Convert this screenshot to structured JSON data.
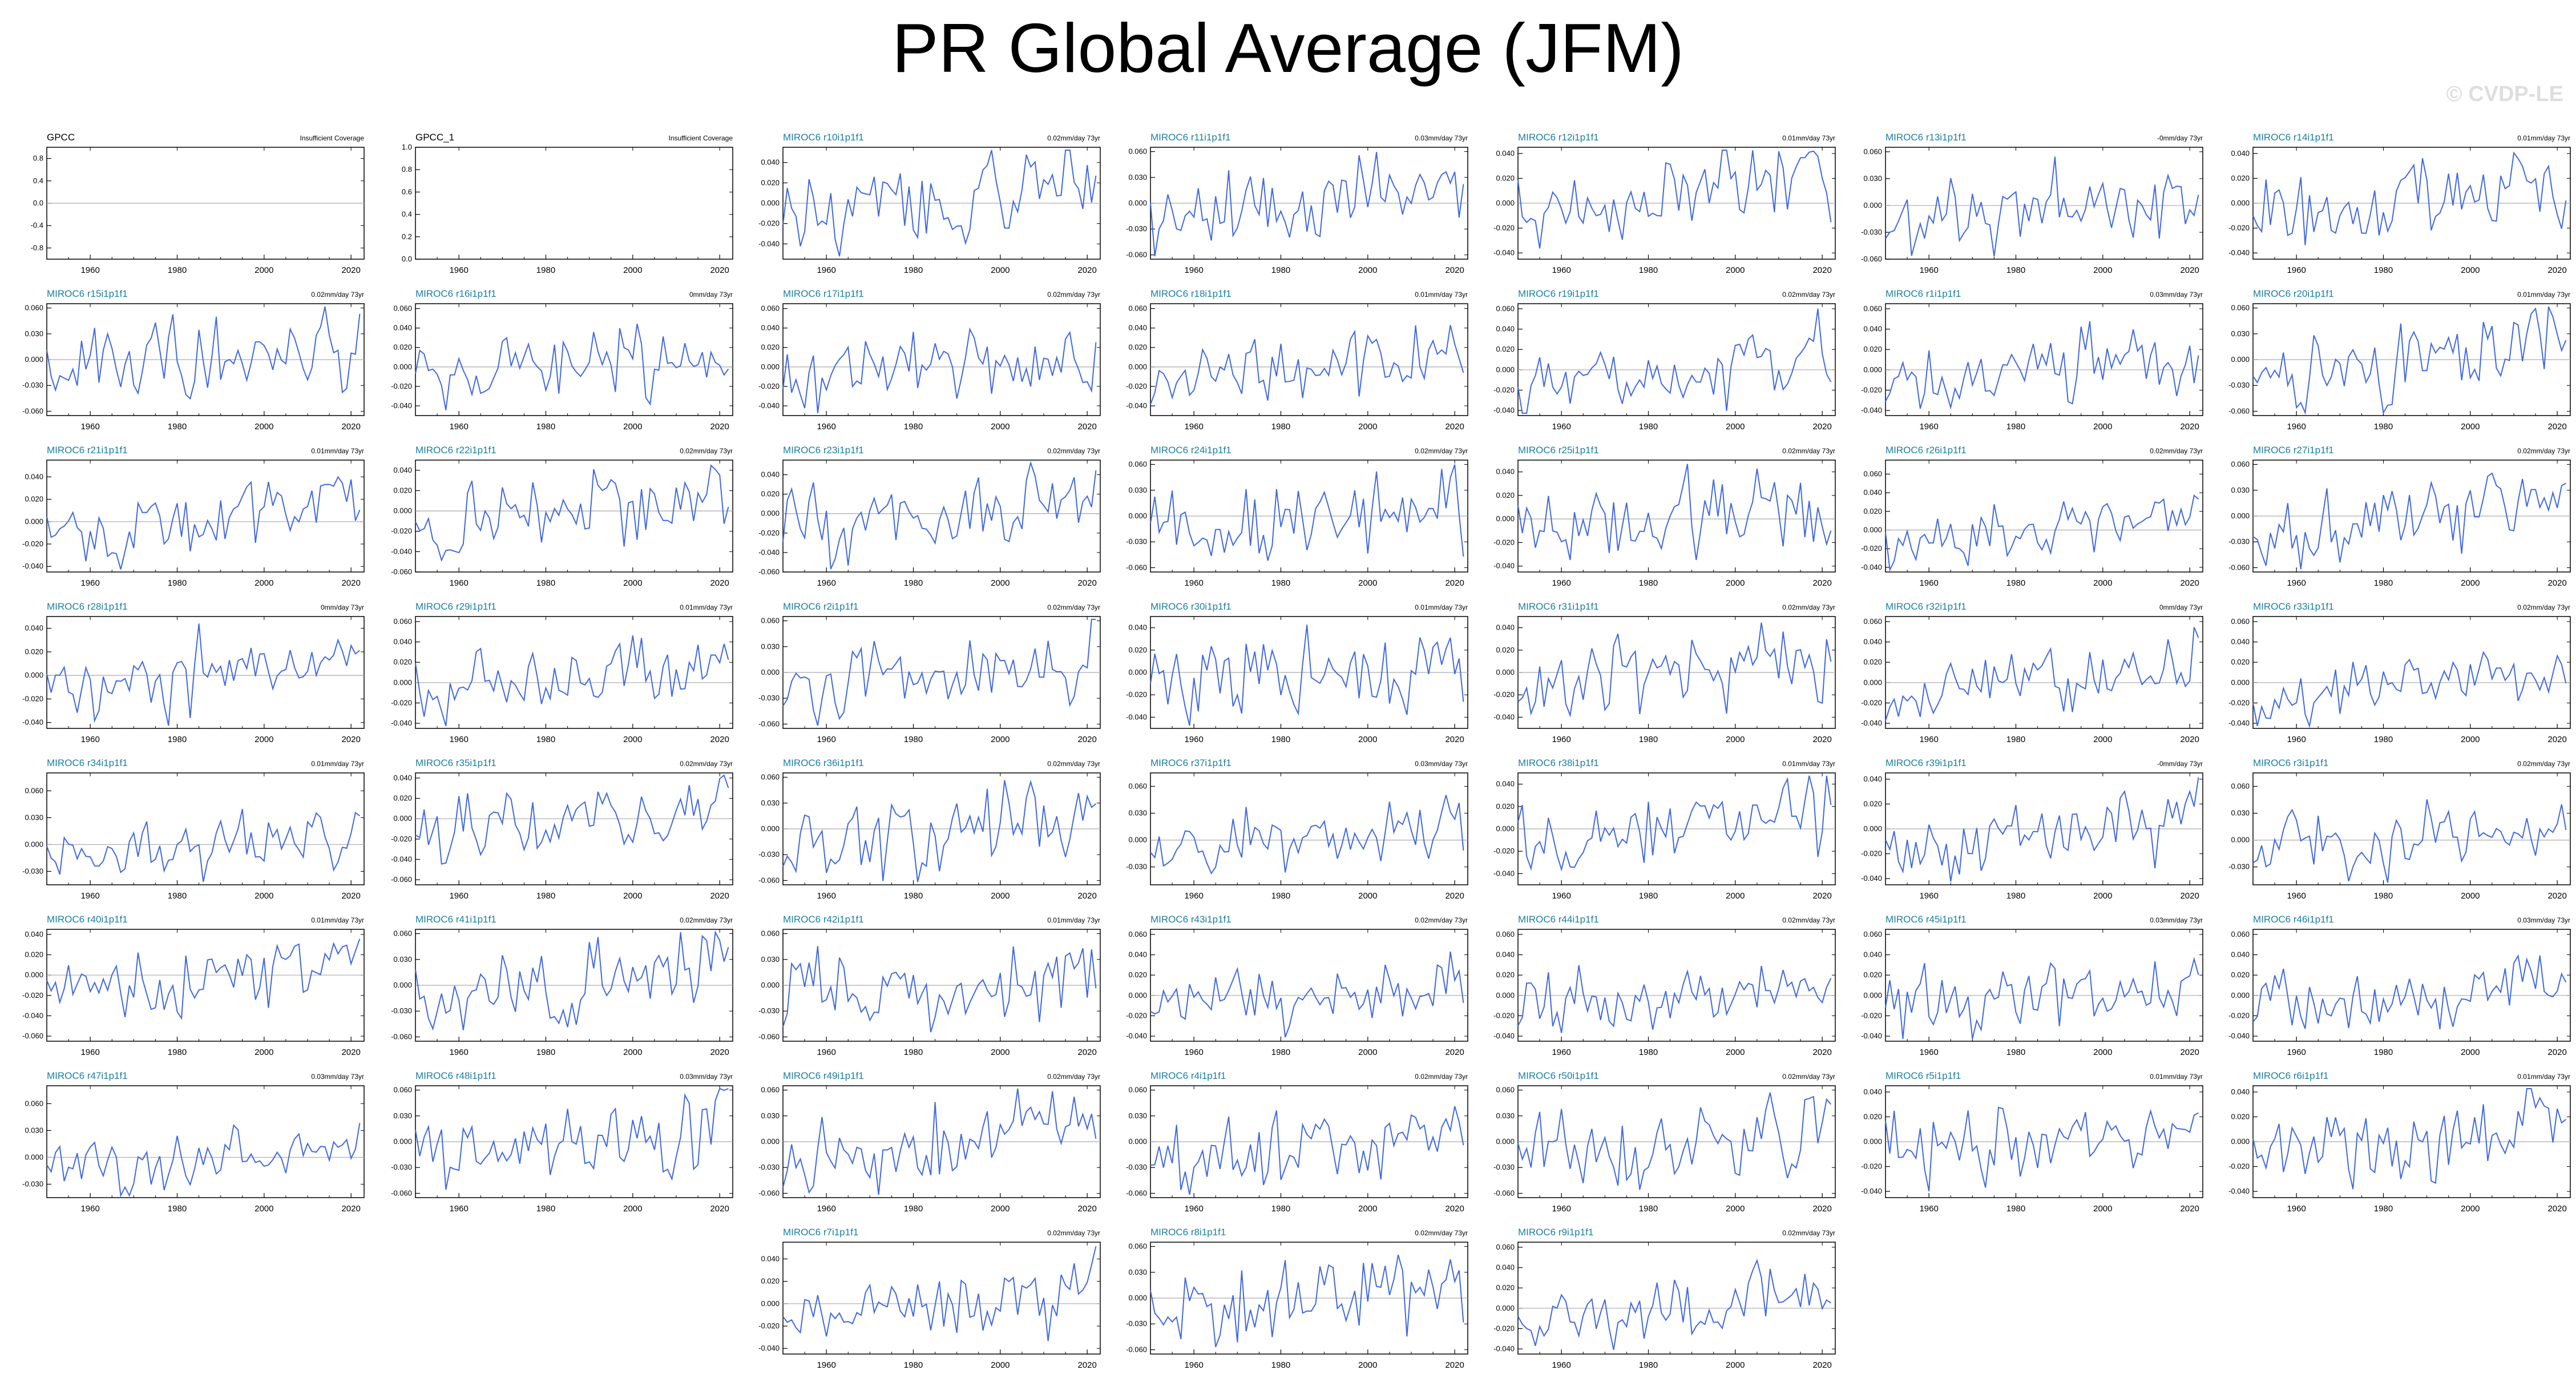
{
  "title": "PR Global Average (JFM)",
  "watermark": "© CVDP-LE",
  "colors": {
    "series": "#4169e1",
    "obs_label": "#000000",
    "model_label": "#1a7fa0",
    "zero_line": "#aaaaaa",
    "axis": "#000000"
  },
  "chart_data": {
    "type": "line",
    "x_ticks": [
      1960,
      1980,
      2000,
      2020
    ],
    "xlim": [
      1950,
      2023
    ],
    "panels": [
      {
        "label": "GPCC",
        "trend": "Insufficient Coverage",
        "ylim": [
          -1,
          1
        ],
        "yticks": [
          "0.8",
          "0.4",
          "0.0",
          "-0.4",
          "-0.8"
        ],
        "ytick_values": [
          0.8,
          0.4,
          0,
          -0.4,
          -0.8
        ],
        "values": [],
        "obs": true
      },
      {
        "label": "GPCC_1",
        "trend": "Insufficient Coverage",
        "ylim": [
          0,
          1
        ],
        "yticks": [
          "1.0",
          "0.8",
          "0.6",
          "0.4",
          "0.2",
          "0.0"
        ],
        "ytick_values": [
          1,
          0.8,
          0.6,
          0.4,
          0.2,
          0
        ],
        "values": [],
        "obs": true
      },
      {
        "label": "MIROC6 r10i1p1f1",
        "trend": "0.02mm/day 73yr",
        "ylim": [
          -0.055,
          0.055
        ]
      },
      {
        "label": "MIROC6 r11i1p1f1",
        "trend": "0.03mm/day 73yr",
        "ylim": [
          -0.065,
          0.065
        ]
      },
      {
        "label": "MIROC6 r12i1p1f1",
        "trend": "0.01mm/day 73yr",
        "ylim": [
          -0.045,
          0.045
        ]
      },
      {
        "label": "MIROC6 r13i1p1f1",
        "trend": "-0mm/day 73yr",
        "ylim": [
          -0.06,
          0.065
        ]
      },
      {
        "label": "MIROC6 r14i1p1f1",
        "trend": "0.01mm/day 73yr",
        "ylim": [
          -0.045,
          0.045
        ]
      },
      {
        "label": "MIROC6 r15i1p1f1",
        "trend": "0.02mm/day 73yr",
        "ylim": [
          -0.065,
          0.065
        ]
      },
      {
        "label": "MIROC6 r16i1p1f1",
        "trend": "0mm/day 73yr",
        "ylim": [
          -0.05,
          0.065
        ]
      },
      {
        "label": "MIROC6 r17i1p1f1",
        "trend": "0.02mm/day 73yr",
        "ylim": [
          -0.05,
          0.065
        ]
      },
      {
        "label": "MIROC6 r18i1p1f1",
        "trend": "0.01mm/day 73yr",
        "ylim": [
          -0.05,
          0.065
        ]
      },
      {
        "label": "MIROC6 r19i1p1f1",
        "trend": "0.02mm/day 73yr",
        "ylim": [
          -0.045,
          0.065
        ]
      },
      {
        "label": "MIROC6 r1i1p1f1",
        "trend": "0.03mm/day 73yr",
        "ylim": [
          -0.045,
          0.065
        ]
      },
      {
        "label": "MIROC6 r20i1p1f1",
        "trend": "0.01mm/day 73yr",
        "ylim": [
          -0.065,
          0.065
        ]
      },
      {
        "label": "MIROC6 r21i1p1f1",
        "trend": "0.01mm/day 73yr",
        "ylim": [
          -0.045,
          0.055
        ]
      },
      {
        "label": "MIROC6 r22i1p1f1",
        "trend": "0.02mm/day 73yr",
        "ylim": [
          -0.06,
          0.05
        ]
      },
      {
        "label": "MIROC6 r23i1p1f1",
        "trend": "0.02mm/day 73yr",
        "ylim": [
          -0.06,
          0.055
        ]
      },
      {
        "label": "MIROC6 r24i1p1f1",
        "trend": "0.02mm/day 73yr",
        "ylim": [
          -0.065,
          0.065
        ]
      },
      {
        "label": "MIROC6 r25i1p1f1",
        "trend": "0.02mm/day 73yr",
        "ylim": [
          -0.045,
          0.05
        ]
      },
      {
        "label": "MIROC6 r26i1p1f1",
        "trend": "0.02mm/day 73yr",
        "ylim": [
          -0.045,
          0.075
        ]
      },
      {
        "label": "MIROC6 r27i1p1f1",
        "trend": "0.02mm/day 73yr",
        "ylim": [
          -0.065,
          0.065
        ]
      },
      {
        "label": "MIROC6 r28i1p1f1",
        "trend": "0mm/day 73yr",
        "ylim": [
          -0.045,
          0.05
        ]
      },
      {
        "label": "MIROC6 r29i1p1f1",
        "trend": "0.01mm/day 73yr",
        "ylim": [
          -0.045,
          0.065
        ]
      },
      {
        "label": "MIROC6 r2i1p1f1",
        "trend": "0.02mm/day 73yr",
        "ylim": [
          -0.065,
          0.065
        ]
      },
      {
        "label": "MIROC6 r30i1p1f1",
        "trend": "0.01mm/day 73yr",
        "ylim": [
          -0.05,
          0.05
        ]
      },
      {
        "label": "MIROC6 r31i1p1f1",
        "trend": "0.02mm/day 73yr",
        "ylim": [
          -0.05,
          0.05
        ]
      },
      {
        "label": "MIROC6 r32i1p1f1",
        "trend": "0mm/day 73yr",
        "ylim": [
          -0.045,
          0.065
        ]
      },
      {
        "label": "MIROC6 r33i1p1f1",
        "trend": "0.02mm/day 73yr",
        "ylim": [
          -0.045,
          0.065
        ]
      },
      {
        "label": "MIROC6 r34i1p1f1",
        "trend": "0.01mm/day 73yr",
        "ylim": [
          -0.045,
          0.08
        ]
      },
      {
        "label": "MIROC6 r35i1p1f1",
        "trend": "0.02mm/day 73yr",
        "ylim": [
          -0.065,
          0.045
        ]
      },
      {
        "label": "MIROC6 r36i1p1f1",
        "trend": "0.02mm/day 73yr",
        "ylim": [
          -0.065,
          0.065
        ]
      },
      {
        "label": "MIROC6 r37i1p1f1",
        "trend": "0.03mm/day 73yr",
        "ylim": [
          -0.05,
          0.075
        ]
      },
      {
        "label": "MIROC6 r38i1p1f1",
        "trend": "0.01mm/day 73yr",
        "ylim": [
          -0.05,
          0.05
        ]
      },
      {
        "label": "MIROC6 r39i1p1f1",
        "trend": "-0mm/day 73yr",
        "ylim": [
          -0.045,
          0.045
        ]
      },
      {
        "label": "MIROC6 r3i1p1f1",
        "trend": "0.02mm/day 73yr",
        "ylim": [
          -0.05,
          0.075
        ]
      },
      {
        "label": "MIROC6 r40i1p1f1",
        "trend": "0.01mm/day 73yr",
        "ylim": [
          -0.065,
          0.045
        ]
      },
      {
        "label": "MIROC6 r41i1p1f1",
        "trend": "0.02mm/day 73yr",
        "ylim": [
          -0.065,
          0.065
        ]
      },
      {
        "label": "MIROC6 r42i1p1f1",
        "trend": "0.01mm/day 73yr",
        "ylim": [
          -0.065,
          0.065
        ]
      },
      {
        "label": "MIROC6 r43i1p1f1",
        "trend": "0.02mm/day 73yr",
        "ylim": [
          -0.045,
          0.065
        ]
      },
      {
        "label": "MIROC6 r44i1p1f1",
        "trend": "0.02mm/day 73yr",
        "ylim": [
          -0.045,
          0.065
        ]
      },
      {
        "label": "MIROC6 r45i1p1f1",
        "trend": "0.03mm/day 73yr",
        "ylim": [
          -0.045,
          0.065
        ]
      },
      {
        "label": "MIROC6 r46i1p1f1",
        "trend": "0.03mm/day 73yr",
        "ylim": [
          -0.045,
          0.065
        ]
      },
      {
        "label": "MIROC6 r47i1p1f1",
        "trend": "0.03mm/day 73yr",
        "ylim": [
          -0.045,
          0.08
        ]
      },
      {
        "label": "MIROC6 r48i1p1f1",
        "trend": "0.03mm/day 73yr",
        "ylim": [
          -0.065,
          0.065
        ]
      },
      {
        "label": "MIROC6 r49i1p1f1",
        "trend": "0.02mm/day 73yr",
        "ylim": [
          -0.065,
          0.065
        ]
      },
      {
        "label": "MIROC6 r4i1p1f1",
        "trend": "0.02mm/day 73yr",
        "ylim": [
          -0.065,
          0.065
        ]
      },
      {
        "label": "MIROC6 r50i1p1f1",
        "trend": "0.02mm/day 73yr",
        "ylim": [
          -0.065,
          0.065
        ]
      },
      {
        "label": "MIROC6 r5i1p1f1",
        "trend": "0.01mm/day 73yr",
        "ylim": [
          -0.045,
          0.045
        ]
      },
      {
        "label": "MIROC6 r6i1p1f1",
        "trend": "0.01mm/day 73yr",
        "ylim": [
          -0.045,
          0.045
        ]
      },
      {
        "label": "MIROC6 r7i1p1f1",
        "trend": "0.02mm/day 73yr",
        "ylim": [
          -0.045,
          0.055
        ]
      },
      {
        "label": "MIROC6 r8i1p1f1",
        "trend": "0.02mm/day 73yr",
        "ylim": [
          -0.065,
          0.065
        ]
      },
      {
        "label": "MIROC6 r9i1p1f1",
        "trend": "0.02mm/day 73yr",
        "ylim": [
          -0.045,
          0.065
        ]
      }
    ]
  }
}
